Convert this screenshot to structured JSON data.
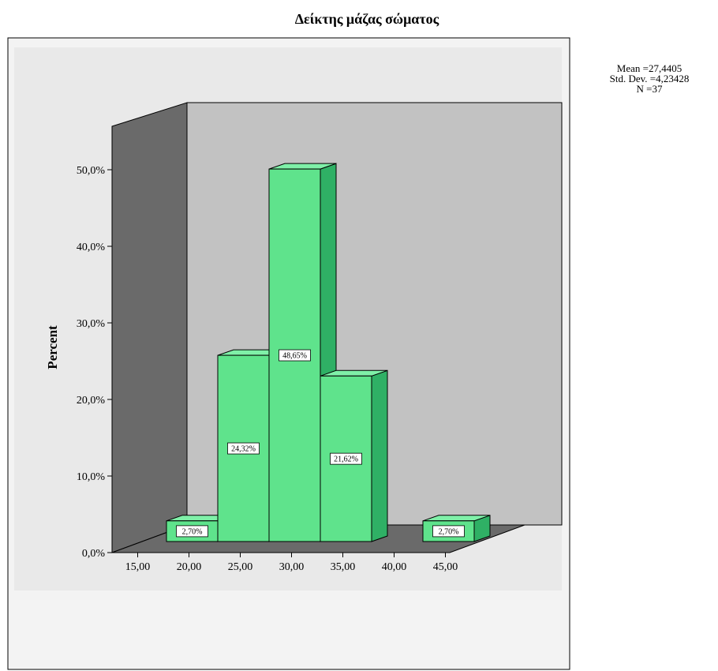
{
  "chart_data": {
    "type": "bar",
    "title": "Δείκτης μάζας σώματος",
    "xlabel": "",
    "ylabel": "Percent",
    "x_ticks": [
      "15,00",
      "20,00",
      "25,00",
      "30,00",
      "35,00",
      "40,00",
      "45,00"
    ],
    "y_ticks": [
      "0,0%",
      "10,0%",
      "20,0%",
      "30,0%",
      "40,0%",
      "50,0%"
    ],
    "ylim": [
      0,
      50
    ],
    "bins": [
      {
        "center": 20,
        "value": 2.7,
        "label": "2,70%"
      },
      {
        "center": 25,
        "value": 24.32,
        "label": "24,32%"
      },
      {
        "center": 30,
        "value": 48.65,
        "label": "48,65%"
      },
      {
        "center": 35,
        "value": 21.62,
        "label": "21,62%"
      },
      {
        "center": 45,
        "value": 2.7,
        "label": "2,70%"
      }
    ],
    "stats": {
      "mean": "Mean =27,4405",
      "std_dev": "Std. Dev. =4,23428",
      "n": "N =37"
    },
    "grid": false,
    "bar_color": "#5fe38c",
    "style": "3d"
  }
}
